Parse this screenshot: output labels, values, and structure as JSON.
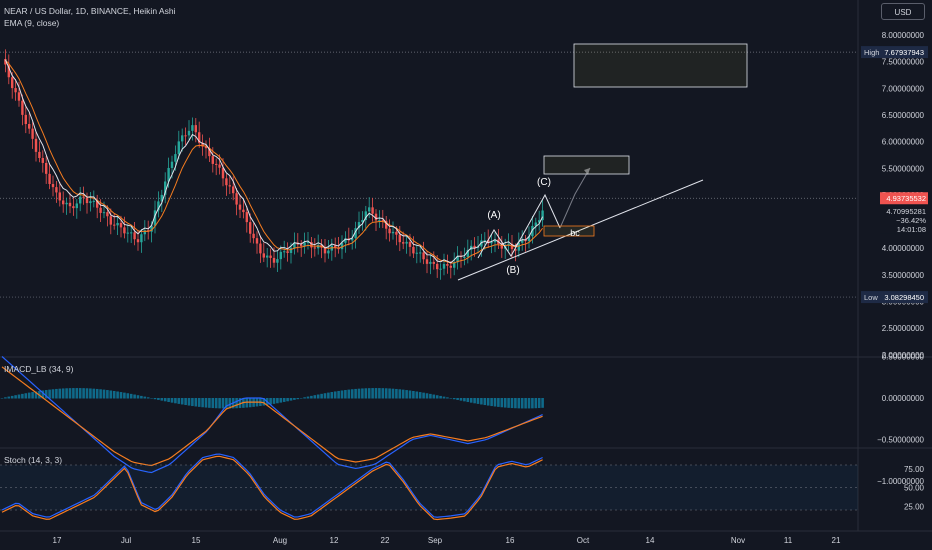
{
  "header": {
    "symbol_line": "NEAR / US Dollar, 1D, BINANCE, Heikin Ashi",
    "ema_line": "EMA (9, close)",
    "currency_button": "USD"
  },
  "price_axis": {
    "ticks": [
      "8.00000000",
      "7.50000000",
      "7.00000000",
      "6.50000000",
      "6.00000000",
      "5.50000000",
      "5.00000000",
      "4.50000000",
      "4.00000000",
      "3.50000000",
      "3.00000000",
      "2.50000000",
      "2.00000000"
    ]
  },
  "badges": {
    "high_label": "High",
    "high_value": "7.67937943",
    "low_label": "Low",
    "low_value": "3.08298450",
    "last_price": "4.93735532",
    "ema_value": "4.70995281",
    "change": "−36.42%",
    "countdown": "14:01:08"
  },
  "annotations": {
    "a": "(A)",
    "b": "(B)",
    "c": "(C)",
    "bc": "bc"
  },
  "macd_panel": {
    "title": "IMACD_LB (34, 9)",
    "ticks": [
      "0.50000000",
      "0.00000000",
      "−0.50000000",
      "−1.00000000"
    ]
  },
  "stoch_panel": {
    "title": "Stoch (14, 3, 3)",
    "ticks": [
      "75.00",
      "50.00",
      "25.00"
    ]
  },
  "time_axis": {
    "labels": [
      "17",
      "Jul",
      "15",
      "Aug",
      "12",
      "22",
      "Sep",
      "16",
      "Oct",
      "14",
      "Nov",
      "11",
      "21"
    ]
  },
  "colors": {
    "bg": "#131722",
    "up": "#26a69a",
    "down": "#ef5350",
    "ema": "#f57c20",
    "line": "#e0e3eb",
    "blue": "#2962ff"
  },
  "chart_data": [
    {
      "type": "candlestick",
      "title": "NEAR / US Dollar, 1D, BINANCE, Heikin Ashi",
      "series_anchor_closes": [
        7.55,
        6.9,
        6.2,
        5.55,
        5.0,
        4.75,
        4.95,
        4.8,
        4.5,
        4.35,
        4.15,
        4.4,
        5.2,
        5.95,
        6.3,
        5.85,
        5.5,
        5.05,
        4.55,
        3.95,
        3.75,
        3.95,
        4.1,
        4.05,
        3.95,
        4.05,
        4.25,
        4.75,
        4.5,
        4.25,
        4.05,
        3.85,
        3.65,
        3.65,
        3.85,
        4.05,
        4.15,
        4.05,
        4.0,
        4.25,
        4.7
      ],
      "ema_label": "EMA (9, close)",
      "ylim": [
        2.0,
        8.2
      ],
      "high": 7.67937943,
      "low": 3.0829845,
      "last": 4.93735532
    },
    {
      "type": "line",
      "title": "IMACD_LB (34, 9)",
      "ylim": [
        -1.0,
        0.5
      ],
      "series": [
        {
          "values": [
            0.5,
            0.3,
            0.1,
            -0.1,
            -0.3,
            -0.5,
            -0.7,
            -0.85,
            -0.9,
            -0.8,
            -0.6,
            -0.4,
            -0.1,
            0.0,
            0.0,
            -0.2,
            -0.4,
            -0.6,
            -0.8,
            -0.85,
            -0.8,
            -0.65,
            -0.5,
            -0.45,
            -0.5,
            -0.55,
            -0.5,
            -0.4,
            -0.3,
            -0.2
          ]
        }
      ]
    },
    {
      "type": "line",
      "title": "Stoch (14, 3, 3)",
      "ylim": [
        0,
        100
      ],
      "series": [
        {
          "values": [
            20,
            30,
            15,
            10,
            20,
            30,
            40,
            60,
            80,
            30,
            20,
            40,
            70,
            90,
            95,
            90,
            70,
            40,
            20,
            10,
            15,
            30,
            45,
            60,
            75,
            85,
            60,
            30,
            10,
            12,
            15,
            40,
            80,
            85,
            80,
            90
          ]
        }
      ]
    }
  ]
}
